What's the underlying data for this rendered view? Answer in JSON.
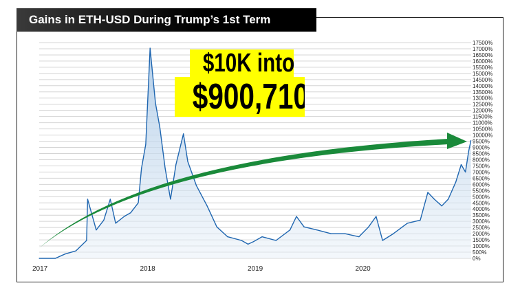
{
  "title": "Gains in ETH-USD During Trump’s 1st Term",
  "callout": {
    "line1": "$10K into",
    "line2": "$900,710!",
    "background": "#ffff00"
  },
  "colors": {
    "line": "#1f66b0",
    "fill": "#a9c8e6",
    "arrow": "#1a8a3a"
  },
  "chart_data": {
    "type": "area",
    "title": "Gains in ETH-USD During Trump’s 1st Term",
    "xlabel": "",
    "ylabel": "",
    "xlim": [
      2017.0,
      2021.02
    ],
    "ylim": [
      0,
      17500
    ],
    "y_axis_position": "right",
    "grid": true,
    "x_ticks": [
      {
        "v": 2017,
        "label": "2017"
      },
      {
        "v": 2018,
        "label": "2018"
      },
      {
        "v": 2019,
        "label": "2019"
      },
      {
        "v": 2020,
        "label": "2020"
      }
    ],
    "y_ticks": [
      "0%",
      "500%",
      "1000%",
      "1500%",
      "2000%",
      "2500%",
      "3000%",
      "3500%",
      "4000%",
      "4500%",
      "5000%",
      "5500%",
      "6000%",
      "6500%",
      "7000%",
      "7500%",
      "8000%",
      "8500%",
      "9000%",
      "9500%",
      "10000%",
      "10500%",
      "11000%",
      "11500%",
      "12000%",
      "12500%",
      "13000%",
      "13500%",
      "14000%",
      "14500%",
      "15000%",
      "15500%",
      "16000%",
      "16500%",
      "17000%",
      "17500%"
    ],
    "series": [
      {
        "x": [
          2017.0,
          2017.15,
          2017.24,
          2017.34,
          2017.44,
          2017.45,
          2017.53,
          2017.6,
          2017.66,
          2017.71,
          2017.79,
          2017.85,
          2017.92,
          2017.95,
          2017.99,
          2018.03,
          2018.08,
          2018.12,
          2018.17,
          2018.22,
          2018.27,
          2018.34,
          2018.38,
          2018.46,
          2018.56,
          2018.65,
          2018.75,
          2018.88,
          2018.94,
          2018.99,
          2019.07,
          2019.2,
          2019.33,
          2019.39,
          2019.46,
          2019.58,
          2019.71,
          2019.84,
          2019.97,
          2020.06,
          2020.13,
          2020.19,
          2020.29,
          2020.42,
          2020.54,
          2020.61,
          2020.67,
          2020.74,
          2020.8,
          2020.87,
          2020.92,
          2020.96,
          2020.99,
          2021.01
        ],
        "y": [
          0,
          0,
          350,
          600,
          1450,
          4800,
          2300,
          3100,
          4800,
          2850,
          3400,
          3700,
          4500,
          7300,
          9250,
          17050,
          12600,
          10650,
          7300,
          4800,
          7600,
          10100,
          7850,
          5900,
          4250,
          2550,
          1750,
          1450,
          1150,
          1350,
          1750,
          1450,
          2300,
          3400,
          2550,
          2300,
          2000,
          2000,
          1750,
          2550,
          3400,
          1450,
          2000,
          2850,
          3100,
          5350,
          4800,
          4250,
          4800,
          6200,
          7600,
          7000,
          8700,
          9550
        ]
      }
    ],
    "annotations": [
      "$10K into",
      "$900,710!"
    ]
  }
}
